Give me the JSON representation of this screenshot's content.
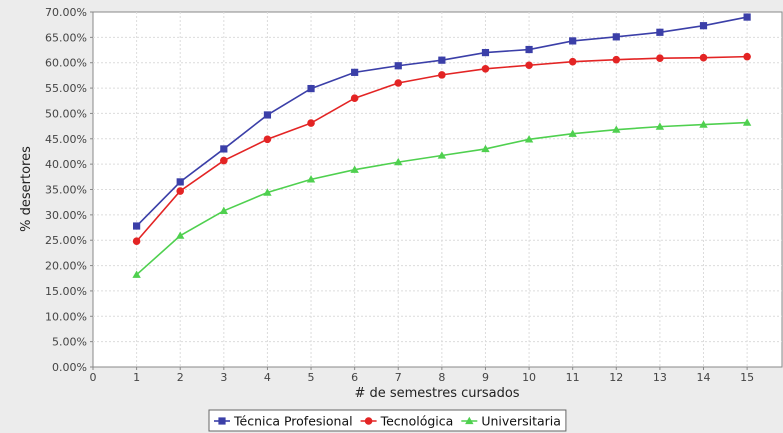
{
  "chart_data": {
    "type": "line",
    "xlabel": "# de semestres cursados",
    "ylabel": "% desertores",
    "xlim": [
      0,
      15.8
    ],
    "ylim": [
      0,
      70
    ],
    "x_ticks": [
      0,
      1,
      2,
      3,
      4,
      5,
      6,
      7,
      8,
      9,
      10,
      11,
      12,
      13,
      14,
      15
    ],
    "y_ticks": [
      0,
      5,
      10,
      15,
      20,
      25,
      30,
      35,
      40,
      45,
      50,
      55,
      60,
      65,
      70
    ],
    "y_tick_labels": [
      "0.00%",
      "5.00%",
      "10.00%",
      "15.00%",
      "20.00%",
      "25.00%",
      "30.00%",
      "35.00%",
      "40.00%",
      "45.00%",
      "50.00%",
      "55.00%",
      "60.00%",
      "65.00%",
      "70.00%"
    ],
    "grid": true,
    "legend_position": "bottom",
    "x": [
      1,
      2,
      3,
      4,
      5,
      6,
      7,
      8,
      9,
      10,
      11,
      12,
      13,
      14,
      15
    ],
    "series": [
      {
        "name": "Técnica Profesional",
        "color": "#3b3fa8",
        "marker": "square",
        "values": [
          27.8,
          36.5,
          43.0,
          49.7,
          54.9,
          58.1,
          59.4,
          60.5,
          62.0,
          62.6,
          64.3,
          65.1,
          66.0,
          67.3,
          69.0
        ]
      },
      {
        "name": "Tecnológica",
        "color": "#e32424",
        "marker": "circle",
        "values": [
          24.8,
          34.7,
          40.7,
          44.9,
          48.1,
          53.0,
          56.0,
          57.6,
          58.8,
          59.5,
          60.2,
          60.6,
          60.9,
          61.0,
          61.2
        ]
      },
      {
        "name": "Universitaria",
        "color": "#4fd04f",
        "marker": "triangle",
        "values": [
          18.2,
          25.9,
          30.8,
          34.4,
          37.0,
          38.9,
          40.4,
          41.7,
          43.0,
          44.9,
          46.0,
          46.8,
          47.4,
          47.8,
          48.2
        ]
      }
    ]
  }
}
